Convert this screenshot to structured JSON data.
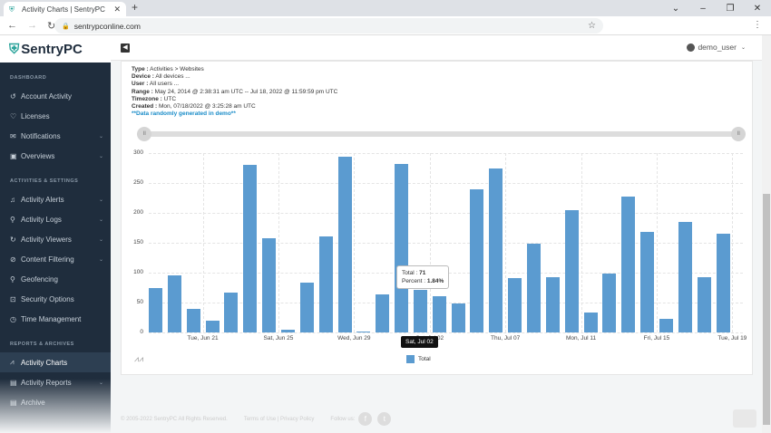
{
  "browser": {
    "tab_title": "Activity Charts | SentryPC",
    "url": "sentrypconline.com",
    "new_tab": "+",
    "close": "✕"
  },
  "sidebar": {
    "brand": "SentryPC",
    "sections": [
      {
        "title": "DASHBOARD",
        "items": [
          {
            "label": "Account Activity",
            "icon": "history-icon"
          },
          {
            "label": "Licenses",
            "icon": "heart-icon"
          },
          {
            "label": "Notifications",
            "icon": "envelope-icon",
            "chevron": true
          },
          {
            "label": "Overviews",
            "icon": "calendar-icon",
            "chevron": true
          }
        ]
      },
      {
        "title": "ACTIVITIES & SETTINGS",
        "items": [
          {
            "label": "Activity Alerts",
            "icon": "bell-icon",
            "chevron": true
          },
          {
            "label": "Activity Logs",
            "icon": "search-icon",
            "chevron": true
          },
          {
            "label": "Activity Viewers",
            "icon": "refresh-icon",
            "chevron": true
          },
          {
            "label": "Content Filtering",
            "icon": "ban-icon",
            "chevron": true
          },
          {
            "label": "Geofencing",
            "icon": "map-pin-icon"
          },
          {
            "label": "Security Options",
            "icon": "lock-icon"
          },
          {
            "label": "Time Management",
            "icon": "clock-icon"
          }
        ]
      },
      {
        "title": "REPORTS & ARCHIVES",
        "items": [
          {
            "label": "Activity Charts",
            "icon": "chart-icon",
            "active": true
          },
          {
            "label": "Activity Reports",
            "icon": "file-icon",
            "chevron": true
          },
          {
            "label": "Archive",
            "icon": "archive-icon"
          }
        ]
      }
    ]
  },
  "header": {
    "user": "demo_user"
  },
  "report": {
    "type_label": "Type :",
    "type": "Activities > Websites",
    "device_label": "Device :",
    "device": "All devices ...",
    "user_label": "User :",
    "user": "All users ...",
    "range_label": "Range :",
    "range": "May 24, 2014 @ 2:38:31 am UTC -- Jul 18, 2022 @ 11:59:59 pm UTC",
    "timezone_label": "Timezone :",
    "timezone": "UTC",
    "created_label": "Created :",
    "created": "Mon, 07/18/2022 @ 3:25:28 am UTC",
    "demo_note": "**Data randomly generated in demo**"
  },
  "tooltip": {
    "total_label": "Total :",
    "total": "71",
    "percent_label": "Percent :",
    "percent": "1.84%",
    "date": "Sat, Jul 02"
  },
  "legend": {
    "label": "Total",
    "color": "#5b9bd0"
  },
  "footer": {
    "copyright": "© 2005-2022 SentryPC All Rights Reserved.",
    "links": "Terms of Use | Privacy Policy",
    "follow": "Follow us:"
  },
  "chart_data": {
    "type": "bar",
    "title": "",
    "xlabel": "",
    "ylabel": "",
    "ylim": [
      0,
      300
    ],
    "yticks": [
      0,
      50,
      100,
      150,
      200,
      250,
      300
    ],
    "xtick_labels": [
      "Tue, Jun 21",
      "Sat, Jun 25",
      "Wed, Jun 29",
      "Sat, Jul 02",
      "Thu, Jul 07",
      "Mon, Jul 11",
      "Fri, Jul 15",
      "Tue, Jul 19"
    ],
    "categories": [
      "Jun 18",
      "Jun 19",
      "Jun 20",
      "Jun 21",
      "Jun 22",
      "Jun 23",
      "Jun 24",
      "Jun 25",
      "Jun 26",
      "Jun 27",
      "Jun 28",
      "Jun 29",
      "Jun 30",
      "Jul 01",
      "Jul 02",
      "Jul 03",
      "Jul 04",
      "Jul 05",
      "Jul 06",
      "Jul 07",
      "Jul 08",
      "Jul 09",
      "Jul 10",
      "Jul 11",
      "Jul 12",
      "Jul 13",
      "Jul 14",
      "Jul 15",
      "Jul 16",
      "Jul 17",
      "Jul 18"
    ],
    "series": [
      {
        "name": "Total",
        "color": "#5b9bd0",
        "values": [
          74,
          96,
          40,
          19,
          67,
          280,
          157,
          4,
          84,
          161,
          294,
          2,
          63,
          282,
          71,
          61,
          49,
          239,
          275,
          91,
          148,
          92,
          205,
          33,
          99,
          228,
          168,
          23,
          185,
          92,
          165
        ]
      }
    ],
    "grid": true,
    "legend_position": "bottom"
  }
}
